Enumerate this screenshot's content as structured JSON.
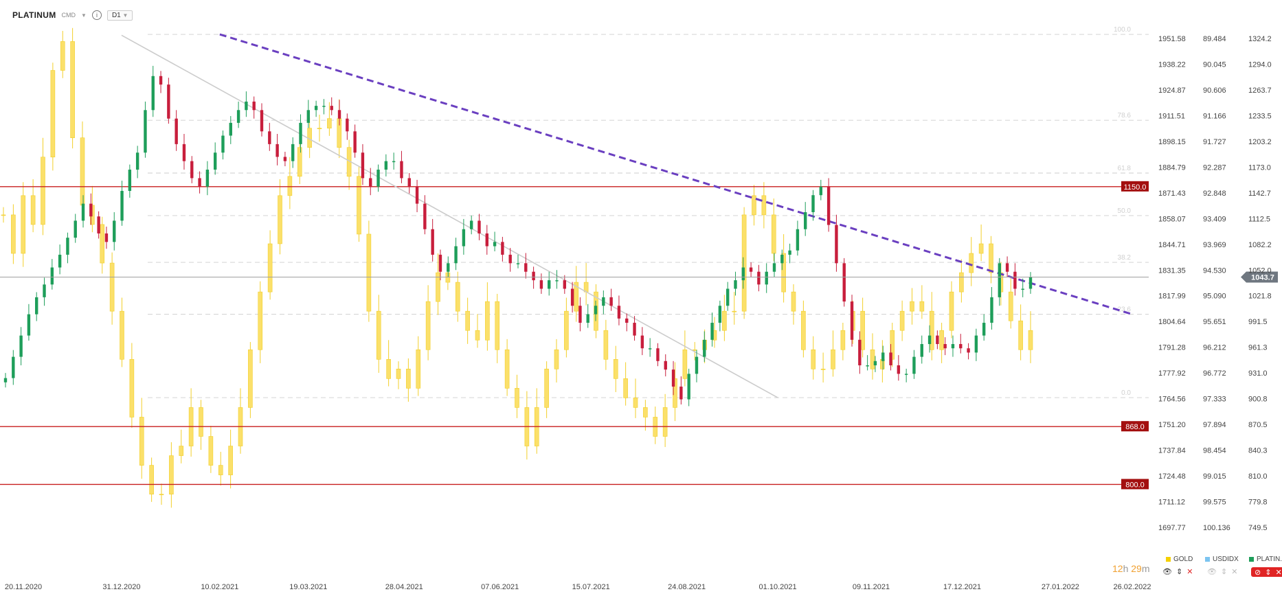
{
  "header": {
    "symbol": "PLATINUM",
    "instrument_type": "CMD",
    "info_icon": "info-icon",
    "timeframe": "D1"
  },
  "countdown": {
    "hours": "12",
    "h_unit": "h",
    "minutes": "29",
    "m_unit": "m"
  },
  "legend": [
    {
      "label": "GOLD",
      "color": "#f5d000"
    },
    {
      "label": "USDIDX",
      "color": "#7cc4f0"
    },
    {
      "label": "PLATIN..",
      "color": "#1e9e5a"
    }
  ],
  "chart_data": {
    "type": "candlestick",
    "x_ticks": [
      "20.11.2020",
      "31.12.2020",
      "10.02.2021",
      "19.03.2021",
      "28.04.2021",
      "07.06.2021",
      "15.07.2021",
      "24.08.2021",
      "01.10.2021",
      "09.11.2021",
      "17.12.2021",
      "27.01.2022",
      "26.02.2022"
    ],
    "axes": {
      "gold": {
        "ticks": [
          "1951.58",
          "1938.22",
          "1924.87",
          "1911.51",
          "1898.15",
          "1884.79",
          "1871.43",
          "1858.07",
          "1844.71",
          "1831.35",
          "1817.99",
          "1804.64",
          "1791.28",
          "1777.92",
          "1764.56",
          "1751.20",
          "1737.84",
          "1724.48",
          "1711.12",
          "1697.77"
        ]
      },
      "usdidx": {
        "ticks": [
          "89.484",
          "90.045",
          "90.606",
          "91.166",
          "91.727",
          "92.287",
          "92.848",
          "93.409",
          "93.969",
          "94.530",
          "95.090",
          "95.651",
          "96.212",
          "96.772",
          "97.333",
          "97.894",
          "98.454",
          "99.015",
          "99.575",
          "100.136"
        ]
      },
      "platinum": {
        "ticks": [
          "1324.2",
          "1294.0",
          "1263.7",
          "1233.5",
          "1203.2",
          "1173.0",
          "1142.7",
          "1112.5",
          "1082.2",
          "1052.0",
          "1021.8",
          "991.5",
          "961.3",
          "931.0",
          "900.8",
          "870.5",
          "840.3",
          "810.0",
          "779.8",
          "749.5"
        ],
        "ylim": [
          749.5,
          1324.2
        ]
      }
    },
    "fibonacci_levels": [
      {
        "label": "100.0",
        "value": 1329.0
      },
      {
        "label": "78.6",
        "value": 1228.0
      },
      {
        "label": "61.8",
        "value": 1166.0
      },
      {
        "label": "50.0",
        "value": 1116.0
      },
      {
        "label": "38.2",
        "value": 1061.0
      },
      {
        "label": "23.6",
        "value": 1000.0
      },
      {
        "label": "0.0",
        "value": 902.0
      }
    ],
    "horizontal_levels": [
      {
        "label": "1150.0",
        "value": 1150.0
      },
      {
        "label": "868.0",
        "value": 868.0
      },
      {
        "label": "800.0",
        "value": 800.0
      }
    ],
    "current_price": {
      "label": "1043.7",
      "value": 1043.7
    },
    "trendlines": [
      {
        "style": "dashed",
        "color": "#6a3fc0",
        "points": [
          [
            "10.02.2021",
            1329.0
          ],
          [
            "26.02.2022",
            1000.0
          ]
        ]
      },
      {
        "style": "solid",
        "color": "#cccccc",
        "points": [
          [
            "31.12.2020",
            1328.0
          ],
          [
            "01.10.2021",
            902.0
          ]
        ]
      }
    ],
    "platinum_closes": [
      925,
      950,
      975,
      1000,
      1020,
      1035,
      1055,
      1070,
      1090,
      1110,
      1130,
      1115,
      1095,
      1085,
      1110,
      1145,
      1170,
      1190,
      1240,
      1280,
      1270,
      1230,
      1200,
      1180,
      1160,
      1150,
      1170,
      1190,
      1210,
      1225,
      1240,
      1250,
      1240,
      1215,
      1200,
      1185,
      1180,
      1200,
      1225,
      1240,
      1245,
      1245,
      1240,
      1230,
      1215,
      1190,
      1160,
      1150,
      1170,
      1180,
      1180,
      1160,
      1150,
      1130,
      1100,
      1070,
      1050,
      1060,
      1080,
      1100,
      1110,
      1095,
      1080,
      1085,
      1070,
      1060,
      1060,
      1050,
      1040,
      1030,
      1040,
      1040,
      1030,
      1010,
      990,
      1000,
      1010,
      1020,
      1010,
      995,
      990,
      975,
      960,
      960,
      945,
      935,
      915,
      900,
      930,
      950,
      970,
      990,
      1010,
      1030,
      1040,
      1055,
      1050,
      1035,
      1050,
      1060,
      1070,
      1075,
      1100,
      1120,
      1140,
      1150,
      1105,
      1060,
      1015,
      970,
      940,
      940,
      945,
      955,
      940,
      930,
      930,
      950,
      965,
      975,
      965,
      960,
      965,
      960,
      955,
      975,
      990,
      1020,
      1060,
      1050,
      1030,
      1030,
      1043.7
    ],
    "gold_overlay": [
      1860,
      1840,
      1870,
      1855,
      1890,
      1935,
      1950,
      1900,
      1865,
      1855,
      1835,
      1810,
      1785,
      1755,
      1730,
      1715,
      1715,
      1735,
      1740,
      1760,
      1745,
      1730,
      1725,
      1740,
      1760,
      1790,
      1820,
      1845,
      1870,
      1880,
      1895,
      1905,
      1905,
      1910,
      1895,
      1880,
      1850,
      1810,
      1785,
      1775,
      1780,
      1770,
      1790,
      1815,
      1830,
      1825,
      1810,
      1800,
      1795,
      1815,
      1790,
      1770,
      1760,
      1740,
      1760,
      1780,
      1790,
      1810,
      1825,
      1820,
      1800,
      1785,
      1775,
      1765,
      1760,
      1755,
      1745,
      1760,
      1775,
      1790,
      1790,
      1795,
      1800,
      1810,
      1810,
      1860,
      1870,
      1860,
      1840,
      1820,
      1810,
      1790,
      1780,
      1780,
      1790,
      1800,
      1810,
      1790,
      1780,
      1785,
      1800,
      1810,
      1815,
      1810,
      1790,
      1800,
      1820,
      1830,
      1840,
      1845,
      1830,
      1820,
      1805,
      1790,
      1800
    ]
  }
}
